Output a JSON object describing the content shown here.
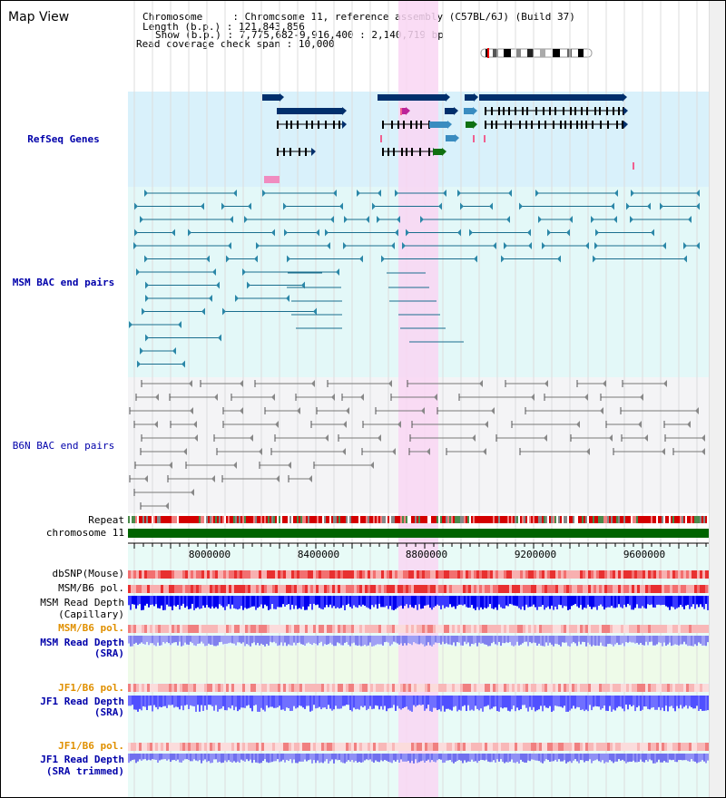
{
  "title": "Map View",
  "info": {
    "chromosome_key": "Chromosome",
    "chromosome_val": "Chromosome 11, reference assembly (C57BL/6J) (Build 37)",
    "length_key": "Length (b.p.)",
    "length_val": "121,843,856",
    "show_key": "Show (b.p.)",
    "show_val": "7,775,682-9,916,400 : 2,140,719 bp",
    "span_key": "Read coverage check span",
    "span_val": "10,000"
  },
  "tracks": {
    "refseq": "RefSeq Genes",
    "msm_bac": "MSM BAC end pairs",
    "b6n_bac": "B6N BAC end pairs",
    "repeat": "Repeat",
    "chromosome": "chromosome 11",
    "dbsnp": "dbSNP(Mouse)",
    "msm_b6_pol1": "MSM/B6 pol.",
    "msm_depth_cap_1": "MSM Read Depth",
    "msm_depth_cap_2": "(Capillary)",
    "msm_b6_pol2": "MSM/B6 pol.",
    "msm_depth_sra_1": "MSM Read Depth",
    "msm_depth_sra_2": "(SRA)",
    "jf1_b6_pol1": "JF1/B6 pol.",
    "jf1_depth_sra_1": "JF1 Read Depth",
    "jf1_depth_sra_2": "(SRA)",
    "jf1_b6_pol2": "JF1/B6 pol.",
    "jf1_depth_trim_1": "JF1 Read Depth",
    "jf1_depth_trim_2": "(SRA trimmed)"
  },
  "axis": {
    "ticks": [
      "8000000",
      "8400000",
      "8800000",
      "9200000",
      "9600000"
    ]
  },
  "colors": {
    "refseq_bg": "#d9f1fb",
    "msm_bg": "#e3f8f8",
    "b6n_bg": "#f4f4f6",
    "highlight": "#f9d6f3",
    "gene_dark": "#002f6c",
    "msm_line": "#1a6e8e",
    "b6n_line": "#777777",
    "chrom": "#006400",
    "depth_dark": "#0000ee",
    "depth_light": "#7f7fff",
    "snp": "#ef4a4a"
  }
}
